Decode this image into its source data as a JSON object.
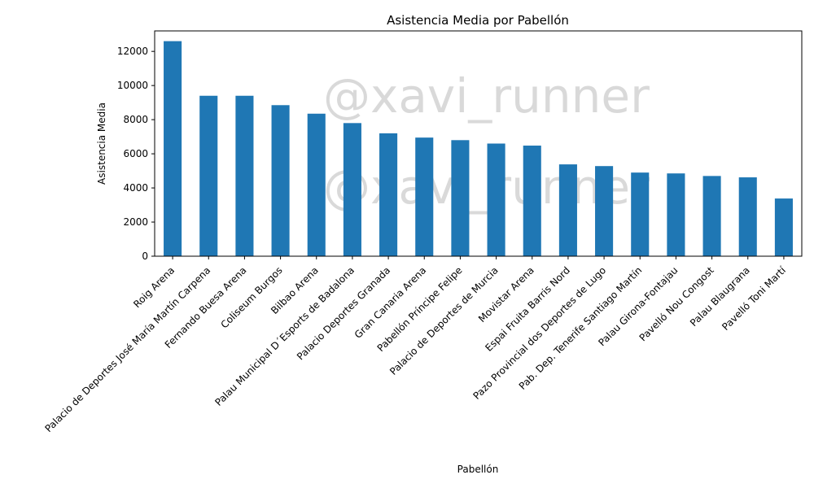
{
  "chart_data": {
    "type": "bar",
    "title": "Asistencia Media por Pabellón",
    "xlabel": "Pabellón",
    "ylabel": "Asistencia Media",
    "ylim": [
      0,
      13200
    ],
    "yticks": [
      0,
      2000,
      4000,
      6000,
      8000,
      10000,
      12000
    ],
    "grid": false,
    "color": "#1f77b4",
    "categories": [
      "Roig Arena",
      "Palacio de Deportes José María Martín Carpena",
      "Fernando Buesa Arena",
      "Coliseum Burgos",
      "Bilbao Arena",
      "Palau Municipal D´Esports de Badalona",
      "Palacio Deportes Granada",
      "Gran Canaria Arena",
      "Pabellón Príncipe Felipe",
      "Palacio de Deportes de Murcia",
      "Movistar Arena",
      "Espai Fruita Barris Nord",
      "Pazo Provincial dos Deportes de Lugo",
      "Pab. Dep. Tenerife Santiago Martín",
      "Palau Girona-Fontajau",
      "Pavelló Nou Congost",
      "Palau Blaugrana",
      "Pavelló Toni Martí"
    ],
    "values": [
      12600,
      9400,
      9400,
      8850,
      8350,
      7800,
      7200,
      6950,
      6800,
      6600,
      6480,
      5380,
      5280,
      4900,
      4850,
      4700,
      4620,
      3380
    ]
  },
  "watermark": [
    "@xavi_runner",
    "@xavi_runner"
  ]
}
